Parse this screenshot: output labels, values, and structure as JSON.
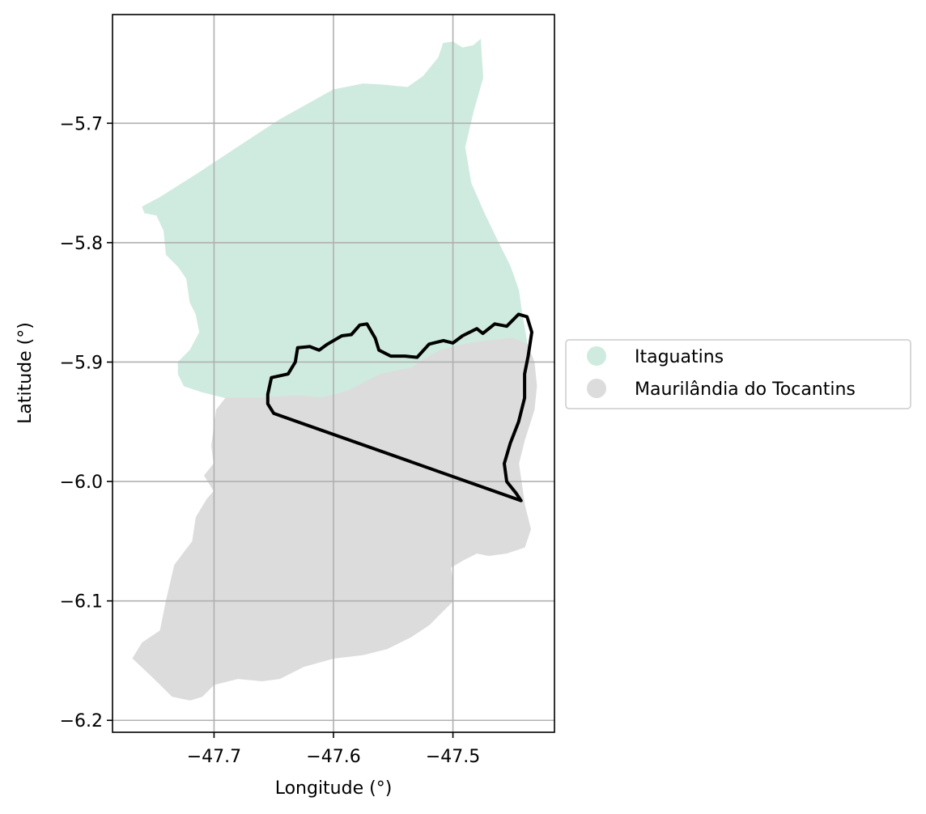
{
  "chart_data": {
    "type": "map",
    "xlabel": "Longitude (°)",
    "ylabel": "Latitude (°)",
    "xlim": [
      -47.785,
      -47.415
    ],
    "ylim": [
      -6.21,
      -5.609
    ],
    "x_ticks": [
      -47.7,
      -47.6,
      -47.5
    ],
    "x_tick_labels": [
      "−47.7",
      "−47.6",
      "−47.5"
    ],
    "y_ticks": [
      -5.7,
      -5.8,
      -5.9,
      -6.0,
      -6.1,
      -6.2
    ],
    "y_tick_labels": [
      "−5.7",
      "−5.8",
      "−5.9",
      "−6.0",
      "−6.1",
      "−6.2"
    ],
    "grid": true,
    "legend_position": "right",
    "regions": [
      {
        "name": "Itaguatins",
        "color": "#cfebdf",
        "polygon": [
          [
            -47.76,
            -5.77
          ],
          [
            -47.745,
            -5.762
          ],
          [
            -47.715,
            -5.743
          ],
          [
            -47.68,
            -5.72
          ],
          [
            -47.645,
            -5.697
          ],
          [
            -47.6,
            -5.672
          ],
          [
            -47.575,
            -5.667
          ],
          [
            -47.558,
            -5.668
          ],
          [
            -47.538,
            -5.67
          ],
          [
            -47.525,
            -5.661
          ],
          [
            -47.512,
            -5.645
          ],
          [
            -47.508,
            -5.633
          ],
          [
            -47.5,
            -5.632
          ],
          [
            -47.492,
            -5.637
          ],
          [
            -47.483,
            -5.635
          ],
          [
            -47.477,
            -5.63
          ],
          [
            -47.475,
            -5.662
          ],
          [
            -47.483,
            -5.69
          ],
          [
            -47.49,
            -5.72
          ],
          [
            -47.485,
            -5.75
          ],
          [
            -47.474,
            -5.775
          ],
          [
            -47.462,
            -5.8
          ],
          [
            -47.452,
            -5.82
          ],
          [
            -47.445,
            -5.84
          ],
          [
            -47.442,
            -5.862
          ],
          [
            -47.44,
            -5.872
          ],
          [
            -47.438,
            -5.885
          ],
          [
            -47.45,
            -5.88
          ],
          [
            -47.47,
            -5.882
          ],
          [
            -47.49,
            -5.885
          ],
          [
            -47.51,
            -5.89
          ],
          [
            -47.525,
            -5.898
          ],
          [
            -47.535,
            -5.905
          ],
          [
            -47.56,
            -5.91
          ],
          [
            -47.59,
            -5.925
          ],
          [
            -47.61,
            -5.93
          ],
          [
            -47.63,
            -5.928
          ],
          [
            -47.66,
            -5.93
          ],
          [
            -47.69,
            -5.93
          ],
          [
            -47.71,
            -5.925
          ],
          [
            -47.725,
            -5.92
          ],
          [
            -47.73,
            -5.91
          ],
          [
            -47.73,
            -5.9
          ],
          [
            -47.72,
            -5.89
          ],
          [
            -47.712,
            -5.875
          ],
          [
            -47.715,
            -5.86
          ],
          [
            -47.72,
            -5.85
          ],
          [
            -47.723,
            -5.83
          ],
          [
            -47.73,
            -5.82
          ],
          [
            -47.74,
            -5.81
          ],
          [
            -47.742,
            -5.79
          ],
          [
            -47.748,
            -5.777
          ],
          [
            -47.758,
            -5.775
          ],
          [
            -47.76,
            -5.77
          ]
        ]
      },
      {
        "name": "Maurilândia do Tocantins",
        "color": "#dcdcdc",
        "polygon": [
          [
            -47.69,
            -5.93
          ],
          [
            -47.66,
            -5.93
          ],
          [
            -47.63,
            -5.928
          ],
          [
            -47.61,
            -5.93
          ],
          [
            -47.59,
            -5.925
          ],
          [
            -47.56,
            -5.91
          ],
          [
            -47.535,
            -5.905
          ],
          [
            -47.525,
            -5.898
          ],
          [
            -47.51,
            -5.89
          ],
          [
            -47.49,
            -5.885
          ],
          [
            -47.47,
            -5.882
          ],
          [
            -47.45,
            -5.88
          ],
          [
            -47.438,
            -5.885
          ],
          [
            -47.432,
            -5.9
          ],
          [
            -47.43,
            -5.92
          ],
          [
            -47.432,
            -5.94
          ],
          [
            -47.44,
            -5.965
          ],
          [
            -47.445,
            -5.985
          ],
          [
            -47.44,
            -6.02
          ],
          [
            -47.435,
            -6.04
          ],
          [
            -47.44,
            -6.055
          ],
          [
            -47.455,
            -6.06
          ],
          [
            -47.47,
            -6.062
          ],
          [
            -47.48,
            -6.06
          ],
          [
            -47.49,
            -6.065
          ],
          [
            -47.502,
            -6.072
          ],
          [
            -47.5,
            -6.085
          ],
          [
            -47.5,
            -6.1
          ],
          [
            -47.51,
            -6.11
          ],
          [
            -47.52,
            -6.12
          ],
          [
            -47.535,
            -6.13
          ],
          [
            -47.555,
            -6.14
          ],
          [
            -47.575,
            -6.145
          ],
          [
            -47.6,
            -6.148
          ],
          [
            -47.625,
            -6.155
          ],
          [
            -47.645,
            -6.165
          ],
          [
            -47.66,
            -6.167
          ],
          [
            -47.68,
            -6.165
          ],
          [
            -47.7,
            -6.17
          ],
          [
            -47.71,
            -6.18
          ],
          [
            -47.72,
            -6.183
          ],
          [
            -47.735,
            -6.18
          ],
          [
            -47.75,
            -6.165
          ],
          [
            -47.768,
            -6.148
          ],
          [
            -47.76,
            -6.135
          ],
          [
            -47.745,
            -6.125
          ],
          [
            -47.74,
            -6.1
          ],
          [
            -47.733,
            -6.07
          ],
          [
            -47.718,
            -6.05
          ],
          [
            -47.715,
            -6.03
          ],
          [
            -47.706,
            -6.015
          ],
          [
            -47.7,
            -6.008
          ],
          [
            -47.708,
            -5.995
          ],
          [
            -47.7,
            -5.985
          ],
          [
            -47.702,
            -5.97
          ],
          [
            -47.7,
            -5.955
          ],
          [
            -47.698,
            -5.94
          ],
          [
            -47.69,
            -5.93
          ]
        ]
      }
    ],
    "outline": {
      "color": "#000000",
      "polygon": [
        [
          -47.655,
          -5.927
        ],
        [
          -47.652,
          -5.913
        ],
        [
          -47.638,
          -5.91
        ],
        [
          -47.632,
          -5.9
        ],
        [
          -47.63,
          -5.888
        ],
        [
          -47.62,
          -5.887
        ],
        [
          -47.612,
          -5.89
        ],
        [
          -47.605,
          -5.885
        ],
        [
          -47.593,
          -5.878
        ],
        [
          -47.585,
          -5.877
        ],
        [
          -47.578,
          -5.869
        ],
        [
          -47.572,
          -5.868
        ],
        [
          -47.565,
          -5.88
        ],
        [
          -47.562,
          -5.89
        ],
        [
          -47.552,
          -5.895
        ],
        [
          -47.54,
          -5.895
        ],
        [
          -47.53,
          -5.896
        ],
        [
          -47.52,
          -5.885
        ],
        [
          -47.508,
          -5.882
        ],
        [
          -47.5,
          -5.884
        ],
        [
          -47.492,
          -5.878
        ],
        [
          -47.48,
          -5.872
        ],
        [
          -47.475,
          -5.876
        ],
        [
          -47.465,
          -5.868
        ],
        [
          -47.455,
          -5.87
        ],
        [
          -47.445,
          -5.86
        ],
        [
          -47.438,
          -5.862
        ],
        [
          -47.434,
          -5.875
        ],
        [
          -47.437,
          -5.895
        ],
        [
          -47.44,
          -5.91
        ],
        [
          -47.44,
          -5.93
        ],
        [
          -47.445,
          -5.95
        ],
        [
          -47.452,
          -5.968
        ],
        [
          -47.457,
          -5.985
        ],
        [
          -47.455,
          -6.0
        ],
        [
          -47.447,
          -6.01
        ],
        [
          -47.443,
          -6.016
        ],
        [
          -47.65,
          -5.943
        ],
        [
          -47.655,
          -5.935
        ],
        [
          -47.655,
          -5.927
        ]
      ]
    },
    "legend": [
      {
        "label": "Itaguatins",
        "color": "#cfebdf"
      },
      {
        "label": "Maurilândia do Tocantins",
        "color": "#dcdcdc"
      }
    ]
  }
}
